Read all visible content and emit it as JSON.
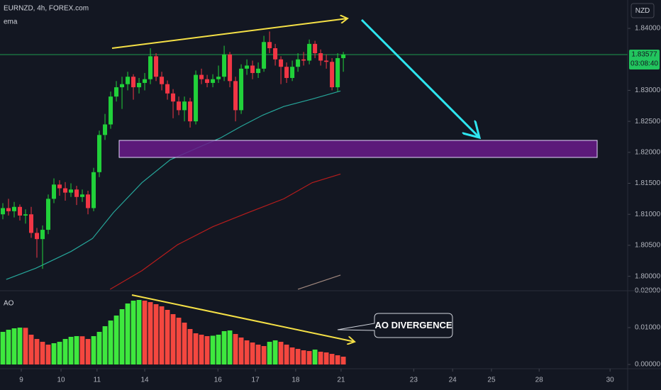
{
  "chart_data": [
    {
      "type": "candlestick",
      "title": "EURNZD, 4h, FOREX.com",
      "indicator_label": "ema",
      "currency": "NZD",
      "last_price": 1.83577,
      "countdown": "03:08:40",
      "last_price_color": "#22c55e",
      "up_color": "#21d13a",
      "down_color": "#f23645",
      "xlim": [
        -0.5,
        110.1
      ],
      "ylim": [
        1.79767,
        1.84458
      ],
      "yticks": [
        {
          "value": 1.84,
          "label": "1.84000"
        },
        {
          "value": 1.83,
          "label": "1.83000"
        },
        {
          "value": 1.825,
          "label": "1.82500"
        },
        {
          "value": 1.82,
          "label": "1.82000"
        },
        {
          "value": 1.815,
          "label": "1.81500"
        },
        {
          "value": 1.81,
          "label": "1.81000"
        },
        {
          "value": 1.805,
          "label": "1.80500"
        },
        {
          "value": 1.8,
          "label": "1.80000"
        }
      ],
      "x": [
        0,
        1,
        2,
        3,
        4,
        5,
        6,
        7,
        8,
        9,
        10,
        11,
        12,
        13,
        14,
        15,
        16,
        17,
        18,
        19,
        20,
        21,
        22,
        23,
        24,
        25,
        26,
        27,
        28,
        29,
        30,
        31,
        32,
        33,
        34,
        35,
        36,
        37,
        38,
        39,
        40,
        41,
        42,
        43,
        44,
        45,
        46,
        47,
        48,
        49,
        50,
        51,
        52,
        53,
        54,
        55,
        56,
        57,
        58,
        59,
        60
      ],
      "open": [
        1.81,
        1.811,
        1.8105,
        1.8112,
        1.8098,
        1.81,
        1.807,
        1.806,
        1.8075,
        1.8125,
        1.8148,
        1.8142,
        1.8135,
        1.814,
        1.8128,
        1.8132,
        1.811,
        1.8168,
        1.8228,
        1.8245,
        1.829,
        1.8305,
        1.831,
        1.8322,
        1.8305,
        1.8312,
        1.8318,
        1.8355,
        1.8322,
        1.831,
        1.8295,
        1.8282,
        1.8268,
        1.8282,
        1.825,
        1.8325,
        1.8318,
        1.8312,
        1.8318,
        1.8322,
        1.8358,
        1.8315,
        1.8268,
        1.8335,
        1.834,
        1.8328,
        1.8335,
        1.8378,
        1.8368,
        1.835,
        1.8338,
        1.832,
        1.8338,
        1.835,
        1.8348,
        1.8375,
        1.836,
        1.8348,
        1.8346,
        1.8305,
        1.8352
      ],
      "high": [
        1.8118,
        1.8125,
        1.812,
        1.8116,
        1.8108,
        1.8112,
        1.8078,
        1.8082,
        1.8132,
        1.8158,
        1.8155,
        1.8152,
        1.815,
        1.8146,
        1.814,
        1.8138,
        1.8175,
        1.8235,
        1.8262,
        1.8298,
        1.8315,
        1.8322,
        1.833,
        1.8326,
        1.832,
        1.8328,
        1.8368,
        1.836,
        1.833,
        1.8316,
        1.8302,
        1.829,
        1.829,
        1.8288,
        1.8332,
        1.8335,
        1.8325,
        1.8326,
        1.834,
        1.8372,
        1.8362,
        1.8322,
        1.8342,
        1.835,
        1.8348,
        1.8345,
        1.8388,
        1.8395,
        1.8375,
        1.8355,
        1.8345,
        1.8348,
        1.836,
        1.8362,
        1.8382,
        1.838,
        1.8366,
        1.8358,
        1.8352,
        1.836,
        1.8362
      ],
      "low": [
        1.8092,
        1.8098,
        1.8095,
        1.809,
        1.8085,
        1.8062,
        1.803,
        1.8012,
        1.8068,
        1.8118,
        1.813,
        1.8122,
        1.8128,
        1.8115,
        1.812,
        1.81,
        1.8105,
        1.816,
        1.822,
        1.8238,
        1.8282,
        1.827,
        1.83,
        1.8285,
        1.8295,
        1.83,
        1.831,
        1.8315,
        1.83,
        1.8285,
        1.8255,
        1.826,
        1.825,
        1.824,
        1.8245,
        1.831,
        1.8305,
        1.8305,
        1.8312,
        1.8315,
        1.8305,
        1.825,
        1.8262,
        1.8325,
        1.8318,
        1.832,
        1.833,
        1.836,
        1.834,
        1.831,
        1.8312,
        1.8315,
        1.833,
        1.834,
        1.8342,
        1.8352,
        1.834,
        1.8335,
        1.83,
        1.8298,
        1.833
      ],
      "close": [
        1.811,
        1.8105,
        1.8112,
        1.8098,
        1.81,
        1.807,
        1.806,
        1.8075,
        1.8125,
        1.8148,
        1.8142,
        1.8135,
        1.814,
        1.8128,
        1.8132,
        1.811,
        1.8168,
        1.8228,
        1.8245,
        1.829,
        1.8305,
        1.831,
        1.8322,
        1.8305,
        1.8312,
        1.8318,
        1.8355,
        1.8322,
        1.831,
        1.8295,
        1.8282,
        1.8268,
        1.8282,
        1.825,
        1.8325,
        1.8318,
        1.8312,
        1.8318,
        1.8322,
        1.8358,
        1.8315,
        1.8268,
        1.8335,
        1.834,
        1.8328,
        1.8335,
        1.8378,
        1.8368,
        1.835,
        1.8338,
        1.832,
        1.8338,
        1.835,
        1.8348,
        1.8375,
        1.836,
        1.8348,
        1.8346,
        1.8305,
        1.8352,
        1.83577
      ],
      "lines": [
        {
          "color": "#26a69a",
          "x": [
            0.6,
            5.8,
            12,
            15.8,
            19.5,
            24.5,
            29.5,
            34.5,
            38.3,
            42,
            45.8,
            49.5,
            54.5,
            59.5
          ],
          "values": [
            1.7995,
            1.8013,
            1.804,
            1.8061,
            1.8103,
            1.8151,
            1.8188,
            1.8208,
            1.8223,
            1.8242,
            1.826,
            1.8274,
            1.8286,
            1.8299
          ]
        },
        {
          "color": "#b71c1c",
          "x": [
            18.9,
            24.5,
            30.8,
            37,
            43.3,
            49.5,
            54.5,
            59.5
          ],
          "values": [
            1.7979,
            1.8009,
            1.8051,
            1.808,
            1.8103,
            1.8125,
            1.8151,
            1.8165
          ]
        },
        {
          "color": "#a1887f",
          "x": [
            52,
            59.5
          ],
          "values": [
            1.7979,
            1.8002
          ]
        }
      ]
    },
    {
      "type": "bar",
      "label": "AO",
      "annotation": "AO DIVERGENCE",
      "up_color": "#3ee83e",
      "down_color": "#f4473f",
      "xlim": [
        -0.5,
        110.1
      ],
      "ylim": [
        -0.00115,
        0.02
      ],
      "yticks": [
        {
          "value": 0.02,
          "label": "0.02000"
        },
        {
          "value": 0.01,
          "label": "0.01000"
        },
        {
          "value": 0,
          "label": "0.00000"
        }
      ],
      "xticks": [
        {
          "value": 3.25,
          "label": "9"
        },
        {
          "value": 10.25,
          "label": "10"
        },
        {
          "value": 16.6,
          "label": "11"
        },
        {
          "value": 25,
          "label": "14"
        },
        {
          "value": 37.9,
          "label": "16"
        },
        {
          "value": 44.5,
          "label": "17"
        },
        {
          "value": 51.6,
          "label": "18"
        },
        {
          "value": 59.6,
          "label": "21"
        },
        {
          "value": 72.4,
          "label": "23"
        },
        {
          "value": 79.25,
          "label": "24"
        },
        {
          "value": 86.1,
          "label": "25"
        },
        {
          "value": 94.5,
          "label": "28"
        },
        {
          "value": 107,
          "label": "30"
        }
      ],
      "x": [
        0,
        1,
        2,
        3,
        4,
        5,
        6,
        7,
        8,
        9,
        10,
        11,
        12,
        13,
        14,
        15,
        16,
        17,
        18,
        19,
        20,
        21,
        22,
        23,
        24,
        25,
        26,
        27,
        28,
        29,
        30,
        31,
        32,
        33,
        34,
        35,
        36,
        37,
        38,
        39,
        40,
        41,
        42,
        43,
        44,
        45,
        46,
        47,
        48,
        49,
        50,
        51,
        52,
        53,
        54,
        55,
        56,
        57,
        58,
        59,
        60
      ],
      "values": [
        0.00885,
        0.00942,
        0.00981,
        0.01,
        0.00995,
        0.00808,
        0.00692,
        0.00615,
        0.00538,
        0.00577,
        0.00615,
        0.00692,
        0.0075,
        0.00769,
        0.00765,
        0.00692,
        0.00769,
        0.00885,
        0.01038,
        0.01192,
        0.01327,
        0.015,
        0.01654,
        0.01731,
        0.0175,
        0.01731,
        0.01692,
        0.01635,
        0.01577,
        0.01481,
        0.01365,
        0.01269,
        0.01135,
        0.00962,
        0.00846,
        0.00808,
        0.00769,
        0.0078,
        0.00808,
        0.00904,
        0.00923,
        0.00827,
        0.00731,
        0.00654,
        0.00596,
        0.00538,
        0.005,
        0.00615,
        0.00654,
        0.00615,
        0.00538,
        0.00462,
        0.00423,
        0.00385,
        0.00365,
        0.00404,
        0.00346,
        0.00327,
        0.00288,
        0.0025,
        0.00212
      ]
    }
  ]
}
